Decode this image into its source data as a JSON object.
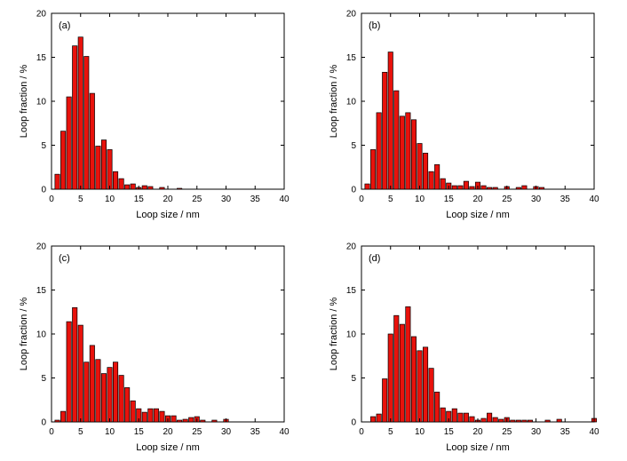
{
  "bar_color": "#e8120c",
  "bar_stroke": "#000000",
  "chart_data": [
    {
      "type": "bar",
      "panel_label": "(a)",
      "xlabel": "Loop size / nm",
      "ylabel": "Loop fraction / %",
      "xlim": [
        0,
        40
      ],
      "ylim": [
        0,
        20
      ],
      "xticks": [
        0,
        5,
        10,
        15,
        20,
        25,
        30,
        35,
        40
      ],
      "yticks": [
        0,
        5,
        10,
        15,
        20
      ],
      "x": [
        1,
        2,
        3,
        4,
        5,
        6,
        7,
        8,
        9,
        10,
        11,
        12,
        13,
        14,
        15,
        16,
        17,
        18,
        19,
        20,
        21,
        22,
        23,
        24,
        25,
        26,
        27,
        28,
        29,
        30,
        31,
        32,
        33,
        34,
        35,
        36,
        37,
        38,
        39,
        40
      ],
      "values": [
        1.7,
        6.6,
        10.5,
        16.3,
        17.3,
        15.1,
        10.9,
        4.9,
        5.6,
        4.5,
        2.0,
        1.2,
        0.5,
        0.6,
        0.2,
        0.4,
        0.3,
        0,
        0.2,
        0,
        0,
        0.1,
        0,
        0,
        0,
        0,
        0,
        0,
        0,
        0,
        0,
        0,
        0,
        0,
        0,
        0,
        0,
        0,
        0,
        0
      ]
    },
    {
      "type": "bar",
      "panel_label": "(b)",
      "xlabel": "Loop size / nm",
      "ylabel": "Loop fraction / %",
      "xlim": [
        0,
        40
      ],
      "ylim": [
        0,
        20
      ],
      "xticks": [
        0,
        5,
        10,
        15,
        20,
        25,
        30,
        35,
        40
      ],
      "yticks": [
        0,
        5,
        10,
        15,
        20
      ],
      "x": [
        1,
        2,
        3,
        4,
        5,
        6,
        7,
        8,
        9,
        10,
        11,
        12,
        13,
        14,
        15,
        16,
        17,
        18,
        19,
        20,
        21,
        22,
        23,
        24,
        25,
        26,
        27,
        28,
        29,
        30,
        31,
        32,
        33,
        34,
        35,
        36,
        37,
        38,
        39,
        40
      ],
      "values": [
        0.6,
        4.5,
        8.7,
        13.3,
        15.6,
        11.2,
        8.3,
        8.7,
        7.9,
        5.2,
        4.1,
        2.0,
        2.8,
        1.2,
        0.7,
        0.4,
        0.4,
        0.9,
        0.3,
        0.8,
        0.4,
        0.2,
        0.2,
        0,
        0.3,
        0,
        0.2,
        0.4,
        0,
        0.3,
        0.2,
        0,
        0,
        0,
        0,
        0,
        0,
        0,
        0,
        0
      ]
    },
    {
      "type": "bar",
      "panel_label": "(c)",
      "xlabel": "Loop size / nm",
      "ylabel": "Loop fraction / %",
      "xlim": [
        0,
        40
      ],
      "ylim": [
        0,
        20
      ],
      "xticks": [
        0,
        5,
        10,
        15,
        20,
        25,
        30,
        35,
        40
      ],
      "yticks": [
        0,
        5,
        10,
        15,
        20
      ],
      "x": [
        1,
        2,
        3,
        4,
        5,
        6,
        7,
        8,
        9,
        10,
        11,
        12,
        13,
        14,
        15,
        16,
        17,
        18,
        19,
        20,
        21,
        22,
        23,
        24,
        25,
        26,
        27,
        28,
        29,
        30,
        31,
        32,
        33,
        34,
        35,
        36,
        37,
        38,
        39,
        40
      ],
      "values": [
        0.2,
        1.2,
        11.4,
        13.0,
        11.0,
        6.8,
        8.7,
        7.1,
        5.5,
        6.2,
        6.8,
        5.3,
        3.9,
        2.4,
        1.5,
        1.1,
        1.5,
        1.5,
        1.2,
        0.7,
        0.7,
        0.2,
        0.3,
        0.5,
        0.6,
        0.2,
        0,
        0.2,
        0,
        0.3,
        0,
        0,
        0,
        0,
        0,
        0,
        0,
        0,
        0,
        0
      ]
    },
    {
      "type": "bar",
      "panel_label": "(d)",
      "xlabel": "Loop size / nm",
      "ylabel": "Loop fraction / %",
      "xlim": [
        0,
        40
      ],
      "ylim": [
        0,
        20
      ],
      "xticks": [
        0,
        5,
        10,
        15,
        20,
        25,
        30,
        35,
        40
      ],
      "yticks": [
        0,
        5,
        10,
        15,
        20
      ],
      "x": [
        1,
        2,
        3,
        4,
        5,
        6,
        7,
        8,
        9,
        10,
        11,
        12,
        13,
        14,
        15,
        16,
        17,
        18,
        19,
        20,
        21,
        22,
        23,
        24,
        25,
        26,
        27,
        28,
        29,
        30,
        31,
        32,
        33,
        34,
        35,
        36,
        37,
        38,
        39,
        40
      ],
      "values": [
        0,
        0.6,
        0.9,
        4.9,
        10.0,
        12.1,
        11.1,
        13.1,
        9.7,
        8.1,
        8.5,
        6.1,
        3.4,
        1.6,
        1.2,
        1.5,
        1.0,
        1.0,
        0.6,
        0.2,
        0.4,
        1.0,
        0.5,
        0.3,
        0.5,
        0.2,
        0.2,
        0.2,
        0.2,
        0,
        0,
        0.2,
        0,
        0.3,
        0,
        0,
        0,
        0,
        0,
        0.4
      ]
    }
  ]
}
